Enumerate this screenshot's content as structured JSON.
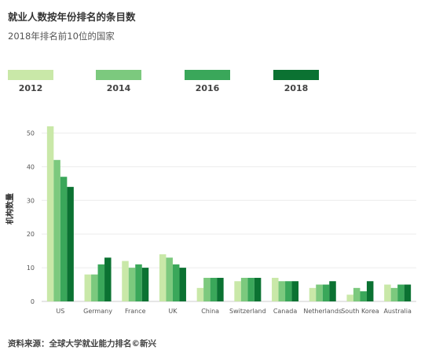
{
  "title": "就业人数按年份排名的条目数",
  "subtitle": "2018年排名前10位的国家",
  "source": "资料来源：全球大学就业能力排名©新兴",
  "colors": {
    "2012": "#c9e8a8",
    "2014": "#7cc97e",
    "2016": "#3aa75a",
    "2018": "#0b7232",
    "grid": "#ececec",
    "axis": "#cccccc"
  },
  "chart_data": {
    "type": "bar",
    "categories": [
      "US",
      "Germany",
      "France",
      "UK",
      "China",
      "Switzerland",
      "Canada",
      "Netherlands",
      "South Korea",
      "Australia"
    ],
    "series": [
      {
        "name": "2012",
        "values": [
          52,
          8,
          12,
          14,
          4,
          6,
          7,
          4,
          2,
          5
        ]
      },
      {
        "name": "2014",
        "values": [
          42,
          8,
          10,
          13,
          7,
          7,
          6,
          5,
          4,
          4
        ]
      },
      {
        "name": "2016",
        "values": [
          37,
          11,
          11,
          11,
          7,
          7,
          6,
          5,
          3,
          5
        ]
      },
      {
        "name": "2018",
        "values": [
          34,
          13,
          10,
          10,
          7,
          7,
          6,
          6,
          6,
          5
        ]
      }
    ],
    "ylabel": "机构数量",
    "xlabel": "",
    "ylim": [
      0,
      55
    ],
    "yticks": [
      0,
      10,
      20,
      30,
      40,
      50
    ],
    "grid": true,
    "legend": "top"
  }
}
